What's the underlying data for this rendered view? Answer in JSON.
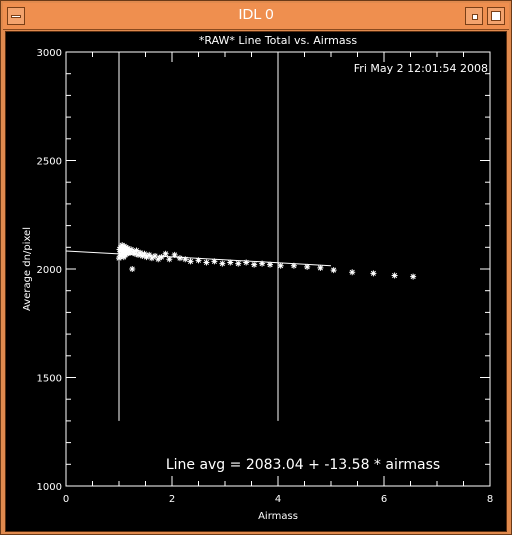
{
  "window": {
    "title": "IDL 0",
    "accent": "#ef8f4f"
  },
  "icons": {
    "menu": "window-menu-icon",
    "minimize": "minimize-icon",
    "maximize": "maximize-icon"
  },
  "chart_data": {
    "type": "scatter",
    "title": "*RAW* Line Total vs. Airmass",
    "timestamp": "Fri May  2 12:01:54 2008",
    "xlabel": "Airmass",
    "ylabel": "Average dn/pixel",
    "xlim": [
      0,
      8
    ],
    "ylim": [
      1000,
      3000
    ],
    "xticks": [
      0,
      2,
      4,
      6,
      8
    ],
    "yticks": [
      1000,
      1500,
      2000,
      2500,
      3000
    ],
    "vertical_lines": [
      1.0,
      4.0
    ],
    "fit": {
      "intercept": 2083.04,
      "slope": -13.58,
      "x_range": [
        0,
        5.0
      ]
    },
    "annotation": "Line avg = 2083.04 + -13.58 * airmass",
    "points": [
      {
        "x": 1.0,
        "y": 2050
      },
      {
        "x": 1.01,
        "y": 2090
      },
      {
        "x": 1.02,
        "y": 2070
      },
      {
        "x": 1.03,
        "y": 2100
      },
      {
        "x": 1.04,
        "y": 2060
      },
      {
        "x": 1.05,
        "y": 2085
      },
      {
        "x": 1.06,
        "y": 2110
      },
      {
        "x": 1.07,
        "y": 2075
      },
      {
        "x": 1.08,
        "y": 2095
      },
      {
        "x": 1.09,
        "y": 2055
      },
      {
        "x": 1.1,
        "y": 2105
      },
      {
        "x": 1.11,
        "y": 2080
      },
      {
        "x": 1.12,
        "y": 2065
      },
      {
        "x": 1.13,
        "y": 2100
      },
      {
        "x": 1.14,
        "y": 2090
      },
      {
        "x": 1.15,
        "y": 2070
      },
      {
        "x": 1.17,
        "y": 2095
      },
      {
        "x": 1.19,
        "y": 2085
      },
      {
        "x": 1.21,
        "y": 2075
      },
      {
        "x": 1.23,
        "y": 2090
      },
      {
        "x": 1.25,
        "y": 2000
      },
      {
        "x": 1.27,
        "y": 2080
      },
      {
        "x": 1.3,
        "y": 2070
      },
      {
        "x": 1.33,
        "y": 2085
      },
      {
        "x": 1.36,
        "y": 2065
      },
      {
        "x": 1.4,
        "y": 2075
      },
      {
        "x": 1.44,
        "y": 2060
      },
      {
        "x": 1.48,
        "y": 2070
      },
      {
        "x": 1.52,
        "y": 2055
      },
      {
        "x": 1.57,
        "y": 2065
      },
      {
        "x": 1.62,
        "y": 2050
      },
      {
        "x": 1.68,
        "y": 2060
      },
      {
        "x": 1.74,
        "y": 2045
      },
      {
        "x": 1.8,
        "y": 2055
      },
      {
        "x": 1.88,
        "y": 2070
      },
      {
        "x": 1.95,
        "y": 2045
      },
      {
        "x": 2.05,
        "y": 2065
      },
      {
        "x": 2.15,
        "y": 2050
      },
      {
        "x": 2.25,
        "y": 2045
      },
      {
        "x": 2.35,
        "y": 2035
      },
      {
        "x": 2.5,
        "y": 2040
      },
      {
        "x": 2.65,
        "y": 2030
      },
      {
        "x": 2.8,
        "y": 2035
      },
      {
        "x": 2.95,
        "y": 2025
      },
      {
        "x": 3.1,
        "y": 2030
      },
      {
        "x": 3.25,
        "y": 2025
      },
      {
        "x": 3.4,
        "y": 2030
      },
      {
        "x": 3.55,
        "y": 2020
      },
      {
        "x": 3.7,
        "y": 2025
      },
      {
        "x": 3.85,
        "y": 2020
      },
      {
        "x": 4.05,
        "y": 2015
      },
      {
        "x": 4.3,
        "y": 2015
      },
      {
        "x": 4.55,
        "y": 2010
      },
      {
        "x": 4.8,
        "y": 2005
      },
      {
        "x": 5.05,
        "y": 1995
      },
      {
        "x": 5.4,
        "y": 1985
      },
      {
        "x": 5.8,
        "y": 1980
      },
      {
        "x": 6.2,
        "y": 1970
      },
      {
        "x": 6.55,
        "y": 1965
      }
    ]
  }
}
